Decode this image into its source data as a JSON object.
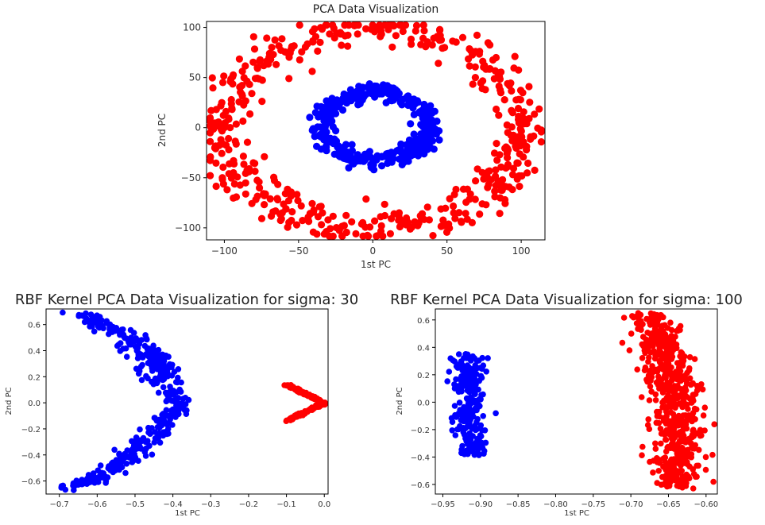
{
  "chart_data": [
    {
      "type": "scatter",
      "title": "PCA Data Visualization",
      "xlabel": "1st PC",
      "ylabel": "2nd PC",
      "xlim": [
        -112,
        116
      ],
      "ylim": [
        -112,
        106
      ],
      "xticks": [
        -100,
        -50,
        0,
        50,
        100
      ],
      "yticks": [
        -100,
        -50,
        0,
        50,
        100
      ],
      "xtick_labels": [
        "−100",
        "−50",
        "0",
        "50",
        "100"
      ],
      "ytick_labels": [
        "−100",
        "−50",
        "0",
        "50",
        "100"
      ],
      "grid": false,
      "series": [
        {
          "color": "#ff0000",
          "shape": "ring",
          "center": [
            0,
            0
          ],
          "radius_x": 100,
          "radius_y": 100,
          "noise": 9
        },
        {
          "color": "#0000ff",
          "shape": "ring",
          "center": [
            2,
            2
          ],
          "radius_x": 36,
          "radius_y": 33,
          "noise": 4
        }
      ]
    },
    {
      "type": "scatter",
      "title": "RBF Kernel PCA Data Visualization for sigma: 30",
      "xlabel": "1st PC",
      "ylabel": "2nd PC",
      "xlim": [
        -0.735,
        0.01
      ],
      "ylim": [
        -0.7,
        0.72
      ],
      "xticks": [
        -0.7,
        -0.6,
        -0.5,
        -0.4,
        -0.3,
        -0.2,
        -0.1,
        0.0
      ],
      "yticks": [
        -0.6,
        -0.4,
        -0.2,
        0.0,
        0.2,
        0.4,
        0.6
      ],
      "xtick_labels": [
        "−0.7",
        "−0.6",
        "−0.5",
        "−0.4",
        "−0.3",
        "−0.2",
        "−0.1",
        "0.0"
      ],
      "ytick_labels": [
        "−0.6",
        "−0.4",
        "−0.2",
        "0.0",
        "0.2",
        "0.4",
        "0.6"
      ],
      "grid": false,
      "series": [
        {
          "color": "#0000ff",
          "shape": "chevron",
          "polyline": [
            [
              -0.64,
              0.68
            ],
            [
              -0.52,
              0.5
            ],
            [
              -0.44,
              0.28
            ],
            [
              -0.4,
              0.1
            ],
            [
              -0.38,
              -0.02
            ],
            [
              -0.43,
              -0.18
            ],
            [
              -0.5,
              -0.38
            ],
            [
              -0.59,
              -0.56
            ],
            [
              -0.67,
              -0.65
            ]
          ],
          "spread": 0.022
        },
        {
          "color": "#ff0000",
          "shape": "chevron",
          "polyline": [
            [
              -0.1,
              0.14
            ],
            [
              -0.05,
              0.07
            ],
            [
              0.0,
              0.0
            ],
            [
              -0.05,
              -0.07
            ],
            [
              -0.1,
              -0.14
            ]
          ],
          "spread": 0.004
        }
      ]
    },
    {
      "type": "scatter",
      "title": "RBF Kernel PCA Data Visualization for sigma: 100",
      "xlabel": "1st PC",
      "ylabel": "2nd PC",
      "xlim": [
        -0.96,
        -0.585
      ],
      "ylim": [
        -0.67,
        0.68
      ],
      "xticks": [
        -0.95,
        -0.9,
        -0.85,
        -0.8,
        -0.75,
        -0.7,
        -0.65,
        -0.6
      ],
      "yticks": [
        -0.6,
        -0.4,
        -0.2,
        0.0,
        0.2,
        0.4,
        0.6
      ],
      "xtick_labels": [
        "−0.95",
        "−0.90",
        "−0.85",
        "−0.80",
        "−0.75",
        "−0.70",
        "−0.65",
        "−0.60"
      ],
      "ytick_labels": [
        "−0.6",
        "−0.4",
        "−0.2",
        "0.0",
        "0.2",
        "0.4",
        "0.6"
      ],
      "grid": false,
      "series": [
        {
          "color": "#0000ff",
          "shape": "band",
          "polyline": [
            [
              -0.915,
              0.35
            ],
            [
              -0.918,
              0.1
            ],
            [
              -0.915,
              -0.1
            ],
            [
              -0.91,
              -0.38
            ]
          ],
          "spread": 0.01
        },
        {
          "color": "#ff0000",
          "shape": "band",
          "polyline": [
            [
              -0.675,
              0.64
            ],
            [
              -0.655,
              0.35
            ],
            [
              -0.64,
              0.0
            ],
            [
              -0.635,
              -0.35
            ],
            [
              -0.645,
              -0.63
            ]
          ],
          "spread": 0.016
        }
      ]
    }
  ]
}
